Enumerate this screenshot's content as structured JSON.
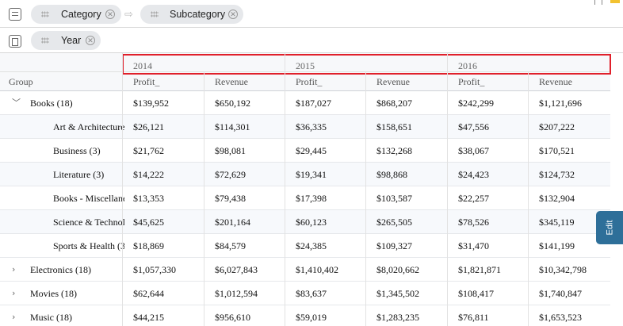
{
  "toolbar": {
    "row_chips": [
      {
        "label": "Category"
      },
      {
        "label": "Subcategory"
      }
    ],
    "column_chips": [
      {
        "label": "Year"
      }
    ],
    "arrow": "⇨",
    "close_glyph": "✕"
  },
  "grid": {
    "group_header": "Group",
    "years": [
      "2014",
      "2015",
      "2016"
    ],
    "measures": [
      "Profit_",
      "Revenue"
    ],
    "rows": [
      {
        "label": "Books (18)",
        "level": 0,
        "expander": "﹀",
        "values": [
          "$139,952",
          "$650,192",
          "$187,027",
          "$868,207",
          "$242,299",
          "$1,121,696"
        ]
      },
      {
        "label": "Art & Architecture",
        "level": 1,
        "expander": "",
        "values": [
          "$26,121",
          "$114,301",
          "$36,335",
          "$158,651",
          "$47,556",
          "$207,222"
        ]
      },
      {
        "label": "Business (3)",
        "level": 1,
        "expander": "",
        "values": [
          "$21,762",
          "$98,081",
          "$29,445",
          "$132,268",
          "$38,067",
          "$170,521"
        ]
      },
      {
        "label": "Literature (3)",
        "level": 1,
        "expander": "",
        "values": [
          "$14,222",
          "$72,629",
          "$19,341",
          "$98,868",
          "$24,423",
          "$124,732"
        ]
      },
      {
        "label": "Books - Miscellane",
        "level": 1,
        "expander": "",
        "values": [
          "$13,353",
          "$79,438",
          "$17,398",
          "$103,587",
          "$22,257",
          "$132,904"
        ]
      },
      {
        "label": "Science & Technolo",
        "level": 1,
        "expander": "",
        "values": [
          "$45,625",
          "$201,164",
          "$60,123",
          "$265,505",
          "$78,526",
          "$345,119"
        ]
      },
      {
        "label": "Sports & Health (3",
        "level": 1,
        "expander": "",
        "values": [
          "$18,869",
          "$84,579",
          "$24,385",
          "$109,327",
          "$31,470",
          "$141,199"
        ]
      },
      {
        "label": "Electronics (18)",
        "level": 0,
        "expander": "›",
        "values": [
          "$1,057,330",
          "$6,027,843",
          "$1,410,402",
          "$8,020,662",
          "$1,821,871",
          "$10,342,798"
        ]
      },
      {
        "label": "Movies (18)",
        "level": 0,
        "expander": "›",
        "values": [
          "$62,644",
          "$1,012,594",
          "$83,637",
          "$1,345,502",
          "$108,417",
          "$1,740,847"
        ]
      },
      {
        "label": "Music (18)",
        "level": 0,
        "expander": "›",
        "values": [
          "$44,215",
          "$956,610",
          "$59,019",
          "$1,283,235",
          "$76,811",
          "$1,653,523"
        ]
      }
    ]
  },
  "edit_tab": {
    "label": "Edit"
  },
  "colors": {
    "highlight": "#e0202b",
    "edit_tab": "#2e6f99",
    "chip_bg": "#e6e8eb"
  }
}
